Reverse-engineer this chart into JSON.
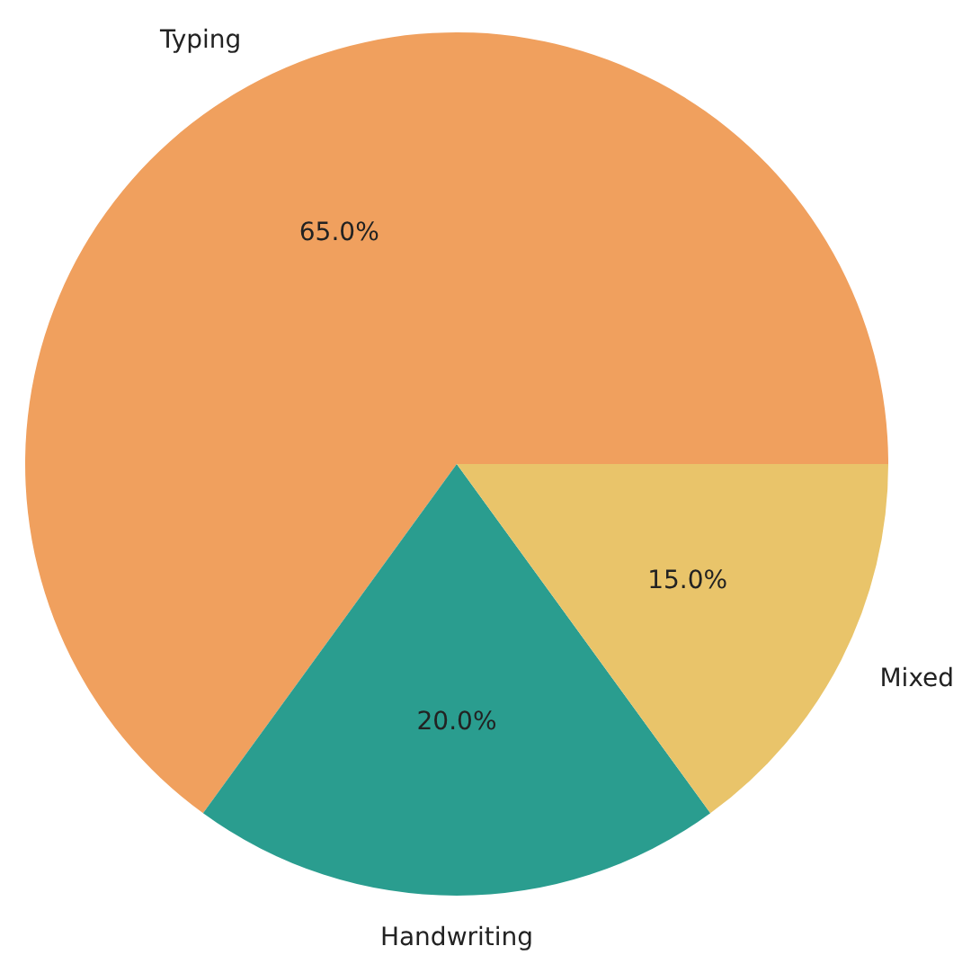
{
  "chart_data": {
    "type": "pie",
    "categories": [
      "Typing",
      "Handwriting",
      "Mixed"
    ],
    "values": [
      65,
      20,
      15
    ],
    "colors": [
      "#f0a05e",
      "#2a9d8f",
      "#e9c46a"
    ],
    "value_labels": [
      "65.0%",
      "20.0%",
      "15.0%"
    ],
    "legend": false
  }
}
